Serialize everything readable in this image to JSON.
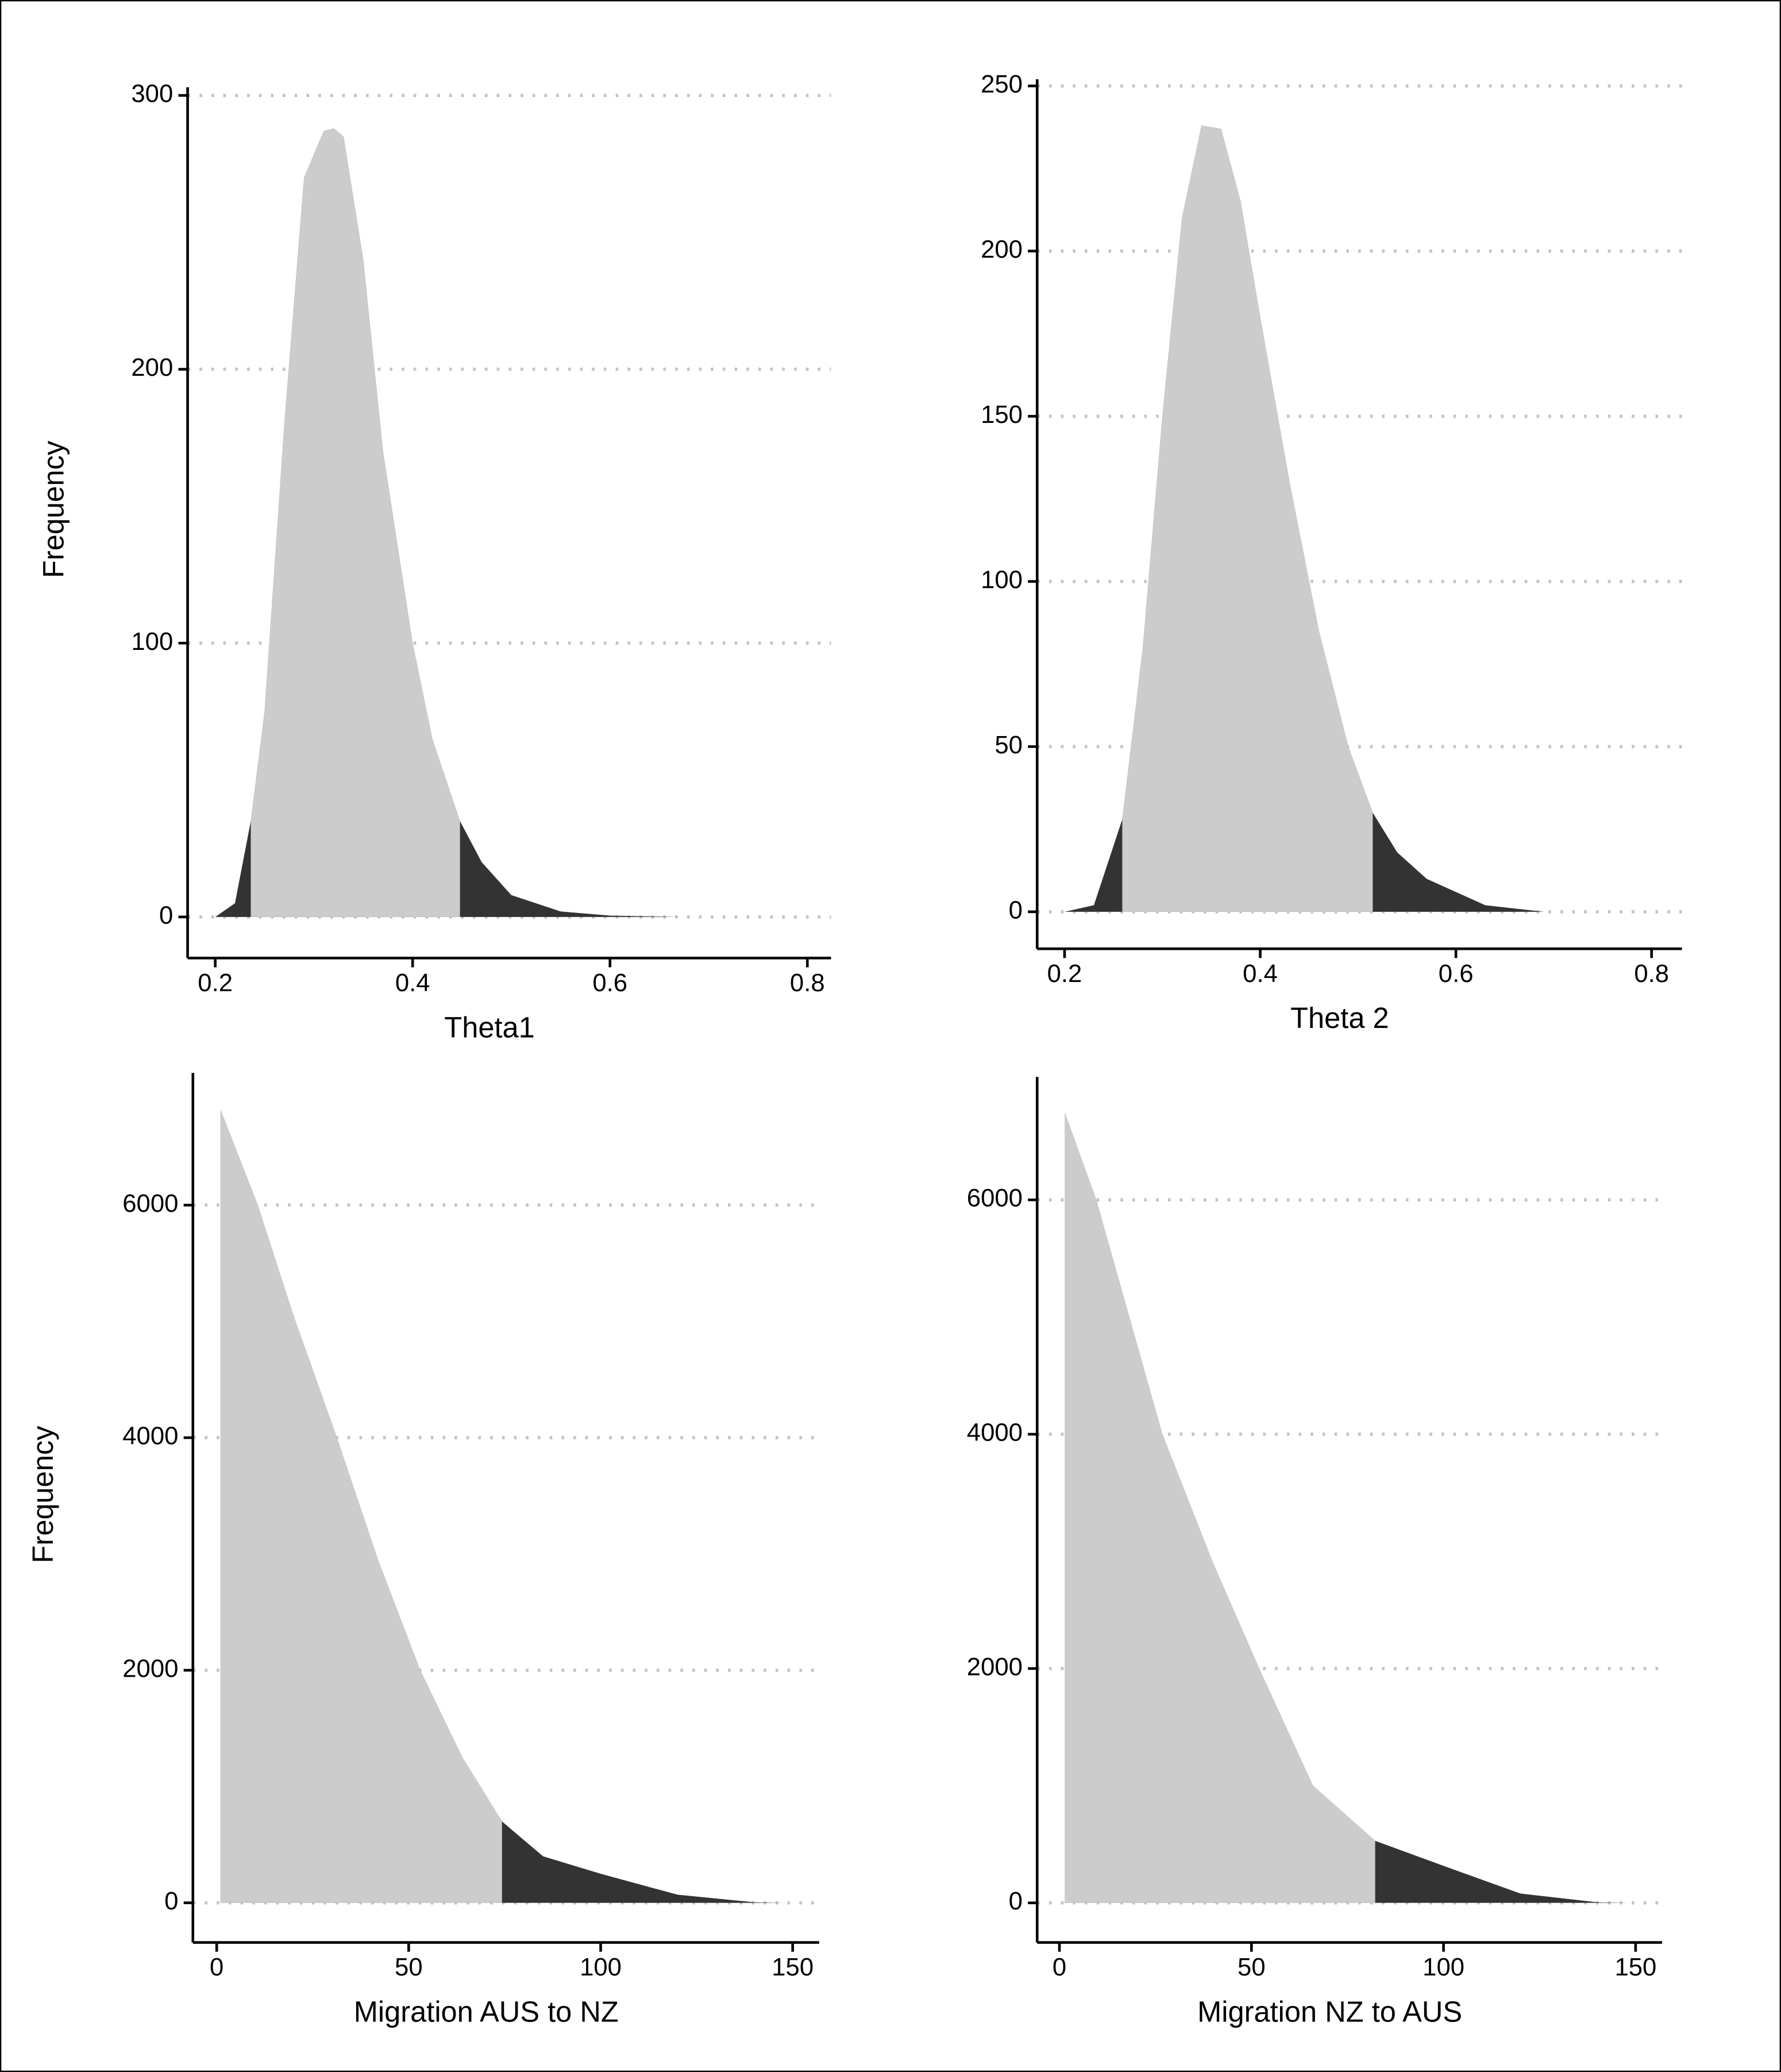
{
  "chart_data": [
    {
      "type": "density",
      "xlabel": "Theta1",
      "ylabel": "Frequency",
      "color": "#cccccc",
      "tail_color": "#333333",
      "x": [
        0.2,
        0.22,
        0.236,
        0.25,
        0.27,
        0.29,
        0.31,
        0.32,
        0.33,
        0.35,
        0.37,
        0.4,
        0.42,
        0.448,
        0.47,
        0.5,
        0.55,
        0.6,
        0.67
      ],
      "values": [
        0,
        5,
        35,
        75,
        180,
        270,
        287,
        288,
        285,
        240,
        170,
        100,
        65,
        35,
        20,
        8,
        2,
        0.5,
        0
      ],
      "interval": [
        0.236,
        0.448
      ],
      "xlim": [
        0.172,
        0.824
      ],
      "ylim": [
        -15,
        303
      ],
      "xticks": [
        0.2,
        0.4,
        0.6,
        0.8
      ],
      "yticks": [
        0,
        100,
        200,
        300
      ],
      "grid": true
    },
    {
      "type": "density",
      "xlabel": "Theta 2",
      "color": "#cccccc",
      "tail_color": "#333333",
      "x": [
        0.2,
        0.23,
        0.259,
        0.28,
        0.3,
        0.32,
        0.34,
        0.36,
        0.38,
        0.4,
        0.43,
        0.46,
        0.49,
        0.515,
        0.54,
        0.57,
        0.6,
        0.63,
        0.69
      ],
      "values": [
        0,
        2,
        28,
        80,
        150,
        210,
        238,
        237,
        215,
        180,
        130,
        85,
        50,
        30,
        18,
        10,
        6,
        2,
        0
      ],
      "interval": [
        0.259,
        0.515
      ],
      "xlim": [
        0.172,
        0.831
      ],
      "ylim": [
        -11.2,
        252
      ],
      "xticks": [
        0.2,
        0.4,
        0.6,
        0.8
      ],
      "yticks": [
        0,
        50,
        100,
        150,
        200,
        250
      ],
      "grid": true
    },
    {
      "type": "density",
      "xlabel": "Migration AUS to NZ",
      "ylabel": "Frequency",
      "color": "#cccccc",
      "tail_color": "#333333",
      "x": [
        1,
        10.7,
        20,
        31.3,
        42,
        53,
        64,
        74.3,
        85,
        100,
        120,
        140,
        148
      ],
      "values": [
        6820,
        6000,
        5050,
        4000,
        2950,
        2000,
        1250,
        700,
        400,
        250,
        70,
        5,
        0
      ],
      "interval": [
        1,
        74.3
      ],
      "xlim": [
        -6.2,
        156.9
      ],
      "ylim": [
        -341,
        7136
      ],
      "xticks": [
        0,
        50,
        100,
        150
      ],
      "yticks": [
        0,
        2000,
        4000,
        6000
      ],
      "grid": true
    },
    {
      "type": "density",
      "xlabel": "Migration NZ to AUS",
      "color": "#cccccc",
      "tail_color": "#333333",
      "x": [
        1.4,
        9.6,
        26.8,
        40,
        52,
        66,
        82.2,
        100,
        120,
        140,
        148
      ],
      "values": [
        6744,
        6000,
        4000,
        2900,
        2000,
        1000,
        530,
        316,
        80,
        5,
        0
      ],
      "interval": [
        1.4,
        82.2
      ],
      "xlim": [
        -5.8,
        156.9
      ],
      "ylim": [
        -338,
        7049
      ],
      "xticks": [
        0,
        50,
        100,
        150
      ],
      "yticks": [
        0,
        2000,
        4000,
        6000
      ],
      "grid": true
    }
  ]
}
